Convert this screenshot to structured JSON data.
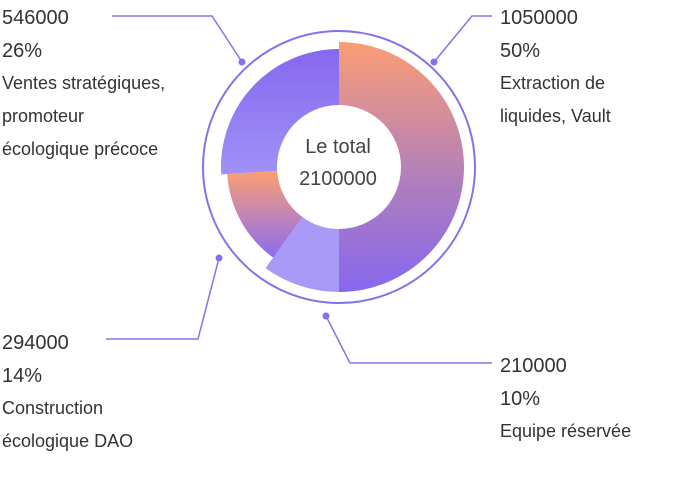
{
  "chart_data": {
    "type": "pie",
    "variant": "donut",
    "center_label": "Le total",
    "center_value": "2100000",
    "slices": [
      {
        "value": 1050000,
        "percent": "50%",
        "name": "Extraction de liquides, Vault",
        "value_text": "1050000"
      },
      {
        "value": 210000,
        "percent": "10%",
        "name": "Equipe réservée",
        "value_text": "210000"
      },
      {
        "value": 294000,
        "percent": "14%",
        "name": "Construction écologique DAO",
        "value_text": "294000"
      },
      {
        "value": 546000,
        "percent": "26%",
        "name": "Ventes stratégiques, promoteur écologique précoce",
        "value_text": "546000"
      }
    ],
    "colors": {
      "accent": "#8a6cf0",
      "orange": "#fb9d75",
      "purple": "#8d6cf2",
      "lavender": "#a99af8",
      "ring": "#8672e8"
    }
  }
}
